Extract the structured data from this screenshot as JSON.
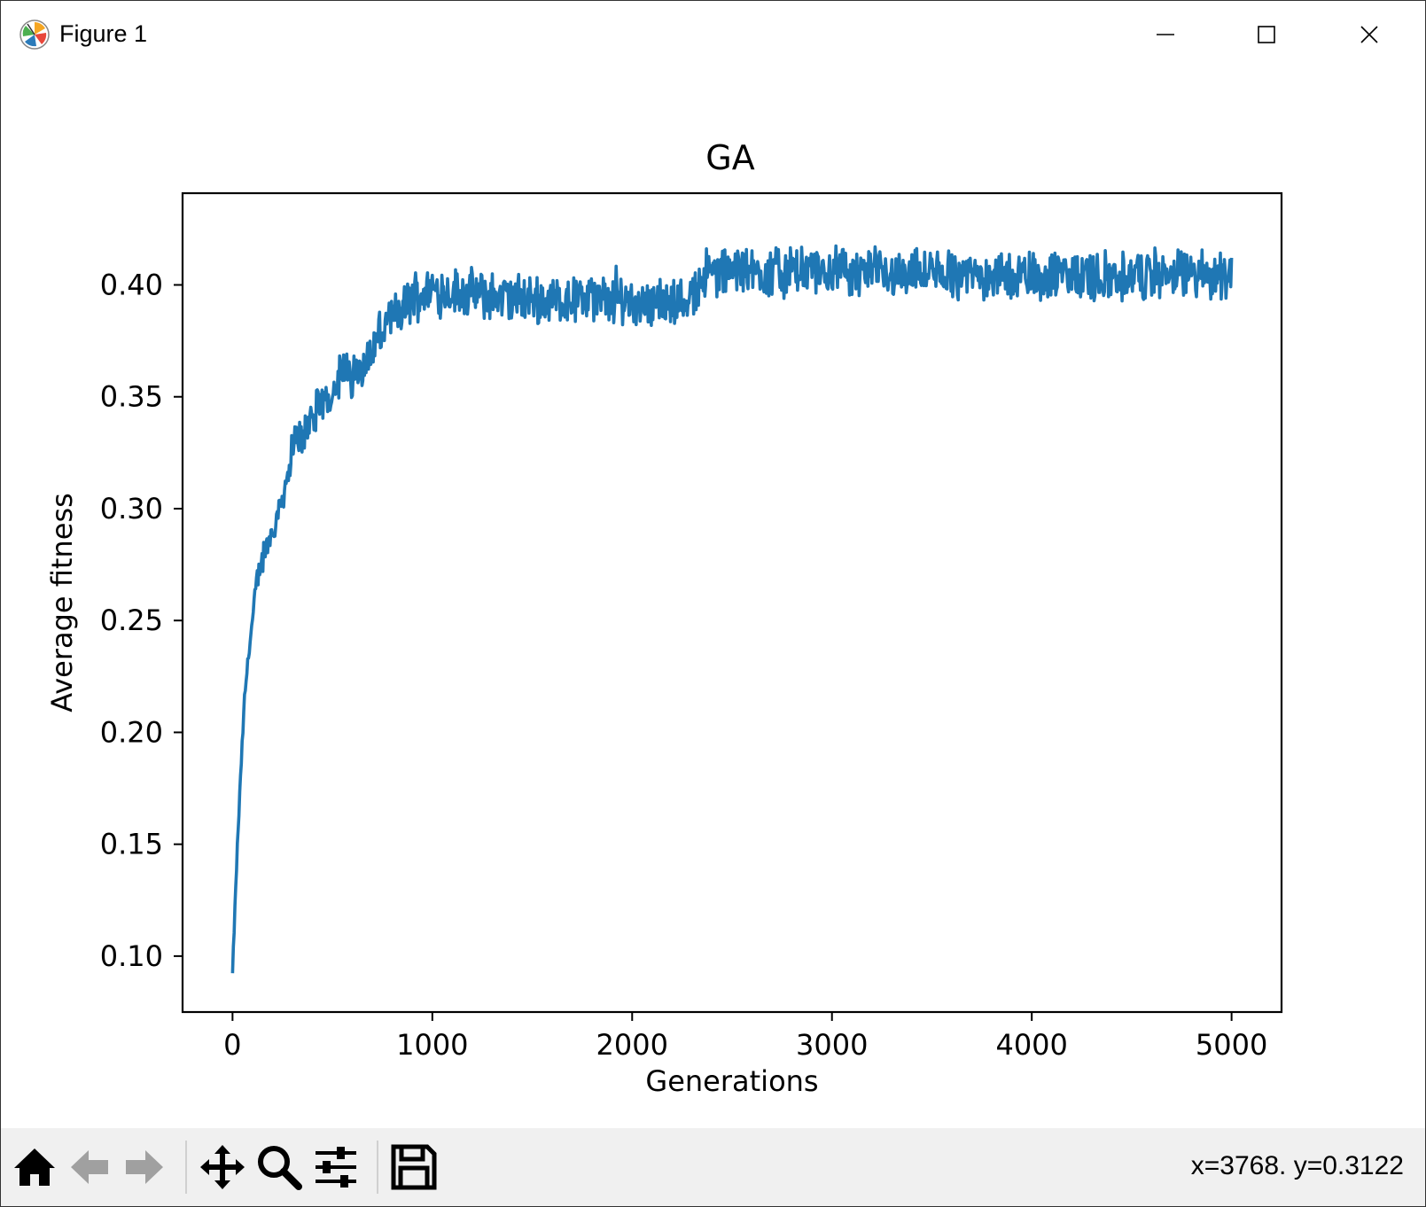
{
  "window": {
    "title": "Figure 1"
  },
  "icons": {
    "app": "matplotlib-icon",
    "minimize": "minimize-icon",
    "maximize": "maximize-icon",
    "close": "close-icon"
  },
  "toolbar": {
    "buttons": [
      "home-icon",
      "back-icon",
      "forward-icon",
      "pan-icon",
      "zoom-icon",
      "configure-subplots-icon",
      "save-icon"
    ],
    "coords": "x=3768. y=0.3122"
  },
  "colors": {
    "line": "#1f77b4",
    "toolbar_bg": "#f0f0f0"
  },
  "chart_data": {
    "type": "line",
    "title": "GA",
    "xlabel": "Generations",
    "ylabel": "Average fitness",
    "xlim": [
      -250,
      5250
    ],
    "ylim": [
      0.075,
      0.441
    ],
    "xticks": [
      0,
      1000,
      2000,
      3000,
      4000,
      5000
    ],
    "xtick_labels": [
      "0",
      "1000",
      "2000",
      "3000",
      "4000",
      "5000"
    ],
    "yticks": [
      0.1,
      0.15,
      0.2,
      0.25,
      0.3,
      0.35,
      0.4
    ],
    "ytick_labels": [
      "0.10",
      "0.15",
      "0.20",
      "0.25",
      "0.30",
      "0.35",
      "0.40"
    ],
    "grid": false,
    "series": [
      {
        "x": [
          0,
          20,
          40,
          60,
          80,
          100,
          120,
          140,
          160,
          180,
          200,
          250,
          300,
          350,
          400,
          450,
          500,
          550,
          600,
          650,
          700,
          750,
          800,
          850,
          900,
          1000,
          1200,
          1400,
          1600,
          1800,
          2000,
          2200,
          2300,
          2350,
          2500,
          3000,
          3500,
          4000,
          4500,
          5000
        ],
        "y": [
          0.092,
          0.14,
          0.18,
          0.215,
          0.235,
          0.25,
          0.265,
          0.275,
          0.28,
          0.285,
          0.29,
          0.305,
          0.325,
          0.335,
          0.34,
          0.345,
          0.355,
          0.36,
          0.36,
          0.365,
          0.37,
          0.38,
          0.385,
          0.388,
          0.395,
          0.398,
          0.396,
          0.394,
          0.393,
          0.394,
          0.393,
          0.392,
          0.394,
          0.405,
          0.406,
          0.406,
          0.405,
          0.404,
          0.404,
          0.405
        ]
      }
    ],
    "noise_amplitude": 0.009
  }
}
